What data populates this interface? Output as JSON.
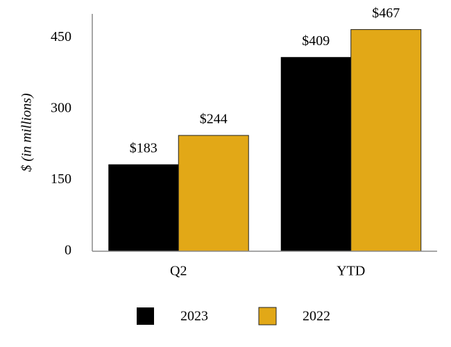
{
  "chart_data": {
    "type": "bar",
    "y_label": "$ (in millions)",
    "categories": [
      "Q2",
      "YTD"
    ],
    "series": [
      {
        "name": "2023",
        "color": "#000000",
        "values": [
          183,
          409
        ],
        "value_labels": [
          "$183",
          "$409"
        ]
      },
      {
        "name": "2022",
        "color": "#e2a817",
        "values": [
          244,
          467
        ],
        "value_labels": [
          "$244",
          "$467"
        ]
      }
    ],
    "ylim": [
      0,
      500
    ],
    "yticks": [
      0,
      150,
      300,
      450
    ],
    "grid": false
  }
}
